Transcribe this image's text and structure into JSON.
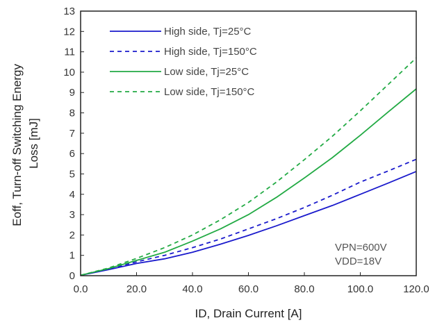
{
  "chart_data": {
    "type": "line",
    "xlabel": "ID, Drain Current [A]",
    "ylabel_lines": [
      "Eoff, Turn-off Switching Energy",
      "Loss [mJ]"
    ],
    "xlim": [
      0,
      120
    ],
    "ylim": [
      0,
      13
    ],
    "x_ticks": [
      0,
      20,
      40,
      60,
      80,
      100,
      120
    ],
    "x_tick_labels": [
      "0.0",
      "20.0",
      "40.0",
      "60.0",
      "80.0",
      "100.0",
      "120.0"
    ],
    "y_ticks": [
      0,
      1,
      2,
      3,
      4,
      5,
      6,
      7,
      8,
      9,
      10,
      11,
      12,
      13
    ],
    "y_tick_labels": [
      "0",
      "1",
      "2",
      "3",
      "4",
      "5",
      "6",
      "7",
      "8",
      "9",
      "10",
      "11",
      "12",
      "13"
    ],
    "grid": false,
    "legend_position": "top-left",
    "annotations": [
      "VPN=600V",
      "VDD=18V"
    ],
    "series": [
      {
        "name": "High side, Tj=25°C",
        "color": "#1a1acc",
        "style": "solid",
        "x": [
          0,
          10,
          20,
          30,
          40,
          50,
          60,
          70,
          80,
          90,
          100,
          110,
          120
        ],
        "y": [
          0.02,
          0.3,
          0.6,
          0.83,
          1.15,
          1.55,
          1.98,
          2.45,
          2.95,
          3.45,
          4.0,
          4.55,
          5.12
        ]
      },
      {
        "name": "High side, Tj=150°C",
        "color": "#1a1acc",
        "style": "dashed",
        "x": [
          0,
          10,
          20,
          30,
          40,
          50,
          60,
          70,
          80,
          90,
          100,
          110,
          120
        ],
        "y": [
          0.02,
          0.33,
          0.68,
          1.0,
          1.38,
          1.8,
          2.3,
          2.8,
          3.35,
          3.95,
          4.6,
          5.15,
          5.72
        ]
      },
      {
        "name": "Low side, Tj=25°C",
        "color": "#22aa44",
        "style": "solid",
        "x": [
          0,
          10,
          20,
          30,
          40,
          50,
          60,
          70,
          80,
          90,
          100,
          110,
          120
        ],
        "y": [
          0.02,
          0.35,
          0.75,
          1.15,
          1.7,
          2.3,
          3.0,
          3.85,
          4.8,
          5.8,
          6.9,
          8.05,
          9.18
        ]
      },
      {
        "name": "Low side, Tj=150°C",
        "color": "#22aa44",
        "style": "dashed",
        "x": [
          0,
          10,
          20,
          30,
          40,
          50,
          60,
          70,
          80,
          90,
          100,
          110,
          120
        ],
        "y": [
          0.02,
          0.38,
          0.85,
          1.38,
          2.0,
          2.75,
          3.6,
          4.6,
          5.7,
          6.85,
          8.1,
          9.4,
          10.7
        ]
      }
    ]
  }
}
